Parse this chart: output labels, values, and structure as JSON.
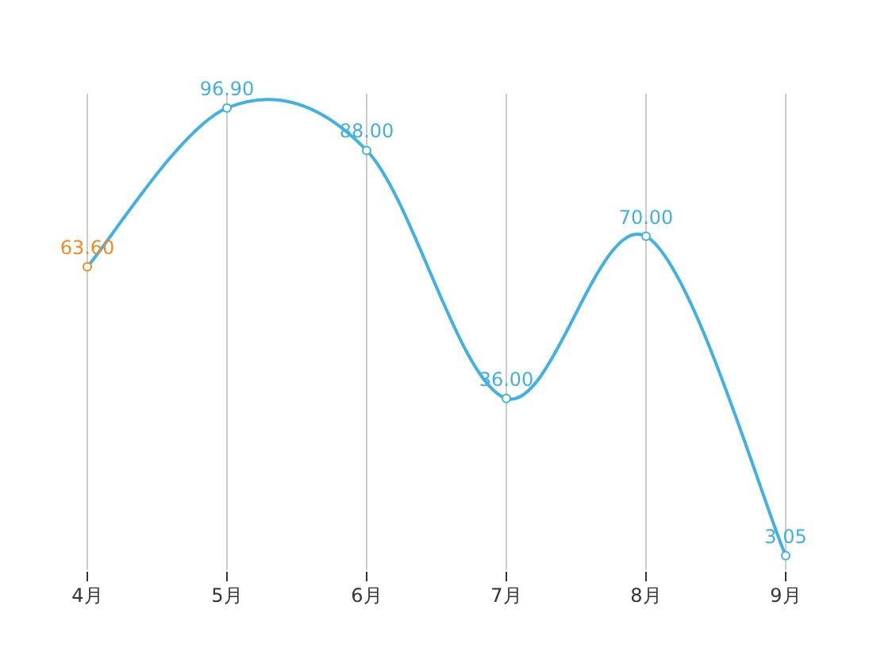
{
  "chart_data": {
    "type": "line",
    "categories": [
      "4月",
      "5月",
      "6月",
      "7月",
      "8月",
      "9月"
    ],
    "series": [
      {
        "color": "#3fb1e3",
        "colors": [
          "#f5891f",
          "#3fb1e3",
          "#3fb1e3",
          "#3fb1e3",
          "#3fb1e3",
          "#3fb1e3"
        ],
        "values": [
          63.6,
          96.9,
          88.0,
          36.0,
          70.0,
          3.05
        ],
        "value_labels": [
          "63.60",
          "96.90",
          "88.00",
          "36.00",
          "70.00",
          "3.05"
        ]
      }
    ],
    "grid": "x",
    "marker": "circle",
    "line_style": "solid"
  }
}
